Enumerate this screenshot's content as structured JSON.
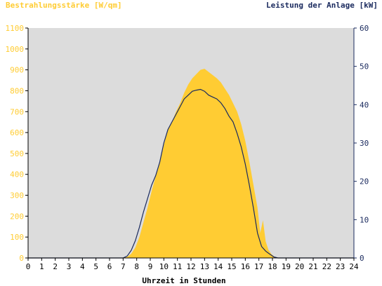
{
  "chart_data": {
    "type": "area",
    "left_axis_title": "Bestrahlungsstärke [W/qm]",
    "right_axis_title": "Leistung der Anlage [kW]",
    "xlabel": "Uhrzeit in Stunden",
    "xlim": [
      0,
      24
    ],
    "ylim_left": [
      0,
      1100
    ],
    "ylim_right": [
      0,
      60
    ],
    "x_ticks": [
      "0",
      "1",
      "2",
      "3",
      "4",
      "5",
      "6",
      "7",
      "8",
      "9",
      "10",
      "11",
      "12",
      "13",
      "14",
      "15",
      "16",
      "17",
      "18",
      "19",
      "20",
      "21",
      "22",
      "23",
      "24"
    ],
    "y_ticks_left": [
      "0",
      "100",
      "200",
      "300",
      "400",
      "500",
      "600",
      "700",
      "800",
      "900",
      "1000",
      "1100"
    ],
    "y_ticks_right": [
      "0",
      "10",
      "20",
      "30",
      "40",
      "50",
      "60"
    ],
    "colors": {
      "irradiance": "#ffcc33",
      "power": "#1a2a5e",
      "plot_bg": "#dcdcdc",
      "left_axis_text": "#ffcc33",
      "right_axis_text": "#1a2a5e",
      "axis": "#000000"
    },
    "series": [
      {
        "name": "Bestrahlungsstärke",
        "axis": "left",
        "x": [
          0,
          7.0,
          7.3,
          7.6,
          7.9,
          8.2,
          8.5,
          8.8,
          9.1,
          9.4,
          9.7,
          10.0,
          10.3,
          10.6,
          10.9,
          11.2,
          11.5,
          11.8,
          12.1,
          12.4,
          12.7,
          13.0,
          13.3,
          13.6,
          13.9,
          14.2,
          14.5,
          14.8,
          15.1,
          15.4,
          15.7,
          16.0,
          16.3,
          16.6,
          16.9,
          17.1,
          17.3,
          17.5,
          17.7,
          17.9,
          18.1,
          18.3,
          24
        ],
        "y": [
          0,
          0,
          5,
          20,
          50,
          100,
          170,
          240,
          320,
          390,
          450,
          540,
          610,
          650,
          700,
          740,
          790,
          830,
          860,
          880,
          900,
          905,
          890,
          875,
          860,
          840,
          810,
          780,
          740,
          700,
          640,
          560,
          460,
          350,
          240,
          120,
          180,
          80,
          40,
          20,
          8,
          0,
          0
        ]
      },
      {
        "name": "Leistung der Anlage",
        "axis": "right",
        "x": [
          0,
          7.0,
          7.3,
          7.6,
          7.9,
          8.2,
          8.5,
          8.8,
          9.1,
          9.4,
          9.7,
          10.0,
          10.3,
          10.6,
          10.9,
          11.2,
          11.5,
          11.8,
          12.1,
          12.4,
          12.7,
          13.0,
          13.3,
          13.6,
          13.9,
          14.2,
          14.5,
          14.8,
          15.1,
          15.4,
          15.7,
          16.0,
          16.3,
          16.6,
          16.9,
          17.2,
          17.5,
          17.8,
          18.1,
          18.4,
          24
        ],
        "y": [
          0,
          0,
          0.5,
          2,
          4.5,
          8,
          12,
          15.5,
          19,
          21.5,
          25,
          30,
          33.5,
          35.5,
          37.5,
          39.5,
          41.5,
          42.5,
          43.5,
          43.8,
          44,
          43.5,
          42.5,
          42,
          41.5,
          40.5,
          39,
          37,
          35.5,
          32.5,
          29,
          24.5,
          19,
          13,
          6.5,
          3,
          1.8,
          1,
          0.3,
          0,
          0
        ]
      }
    ]
  }
}
